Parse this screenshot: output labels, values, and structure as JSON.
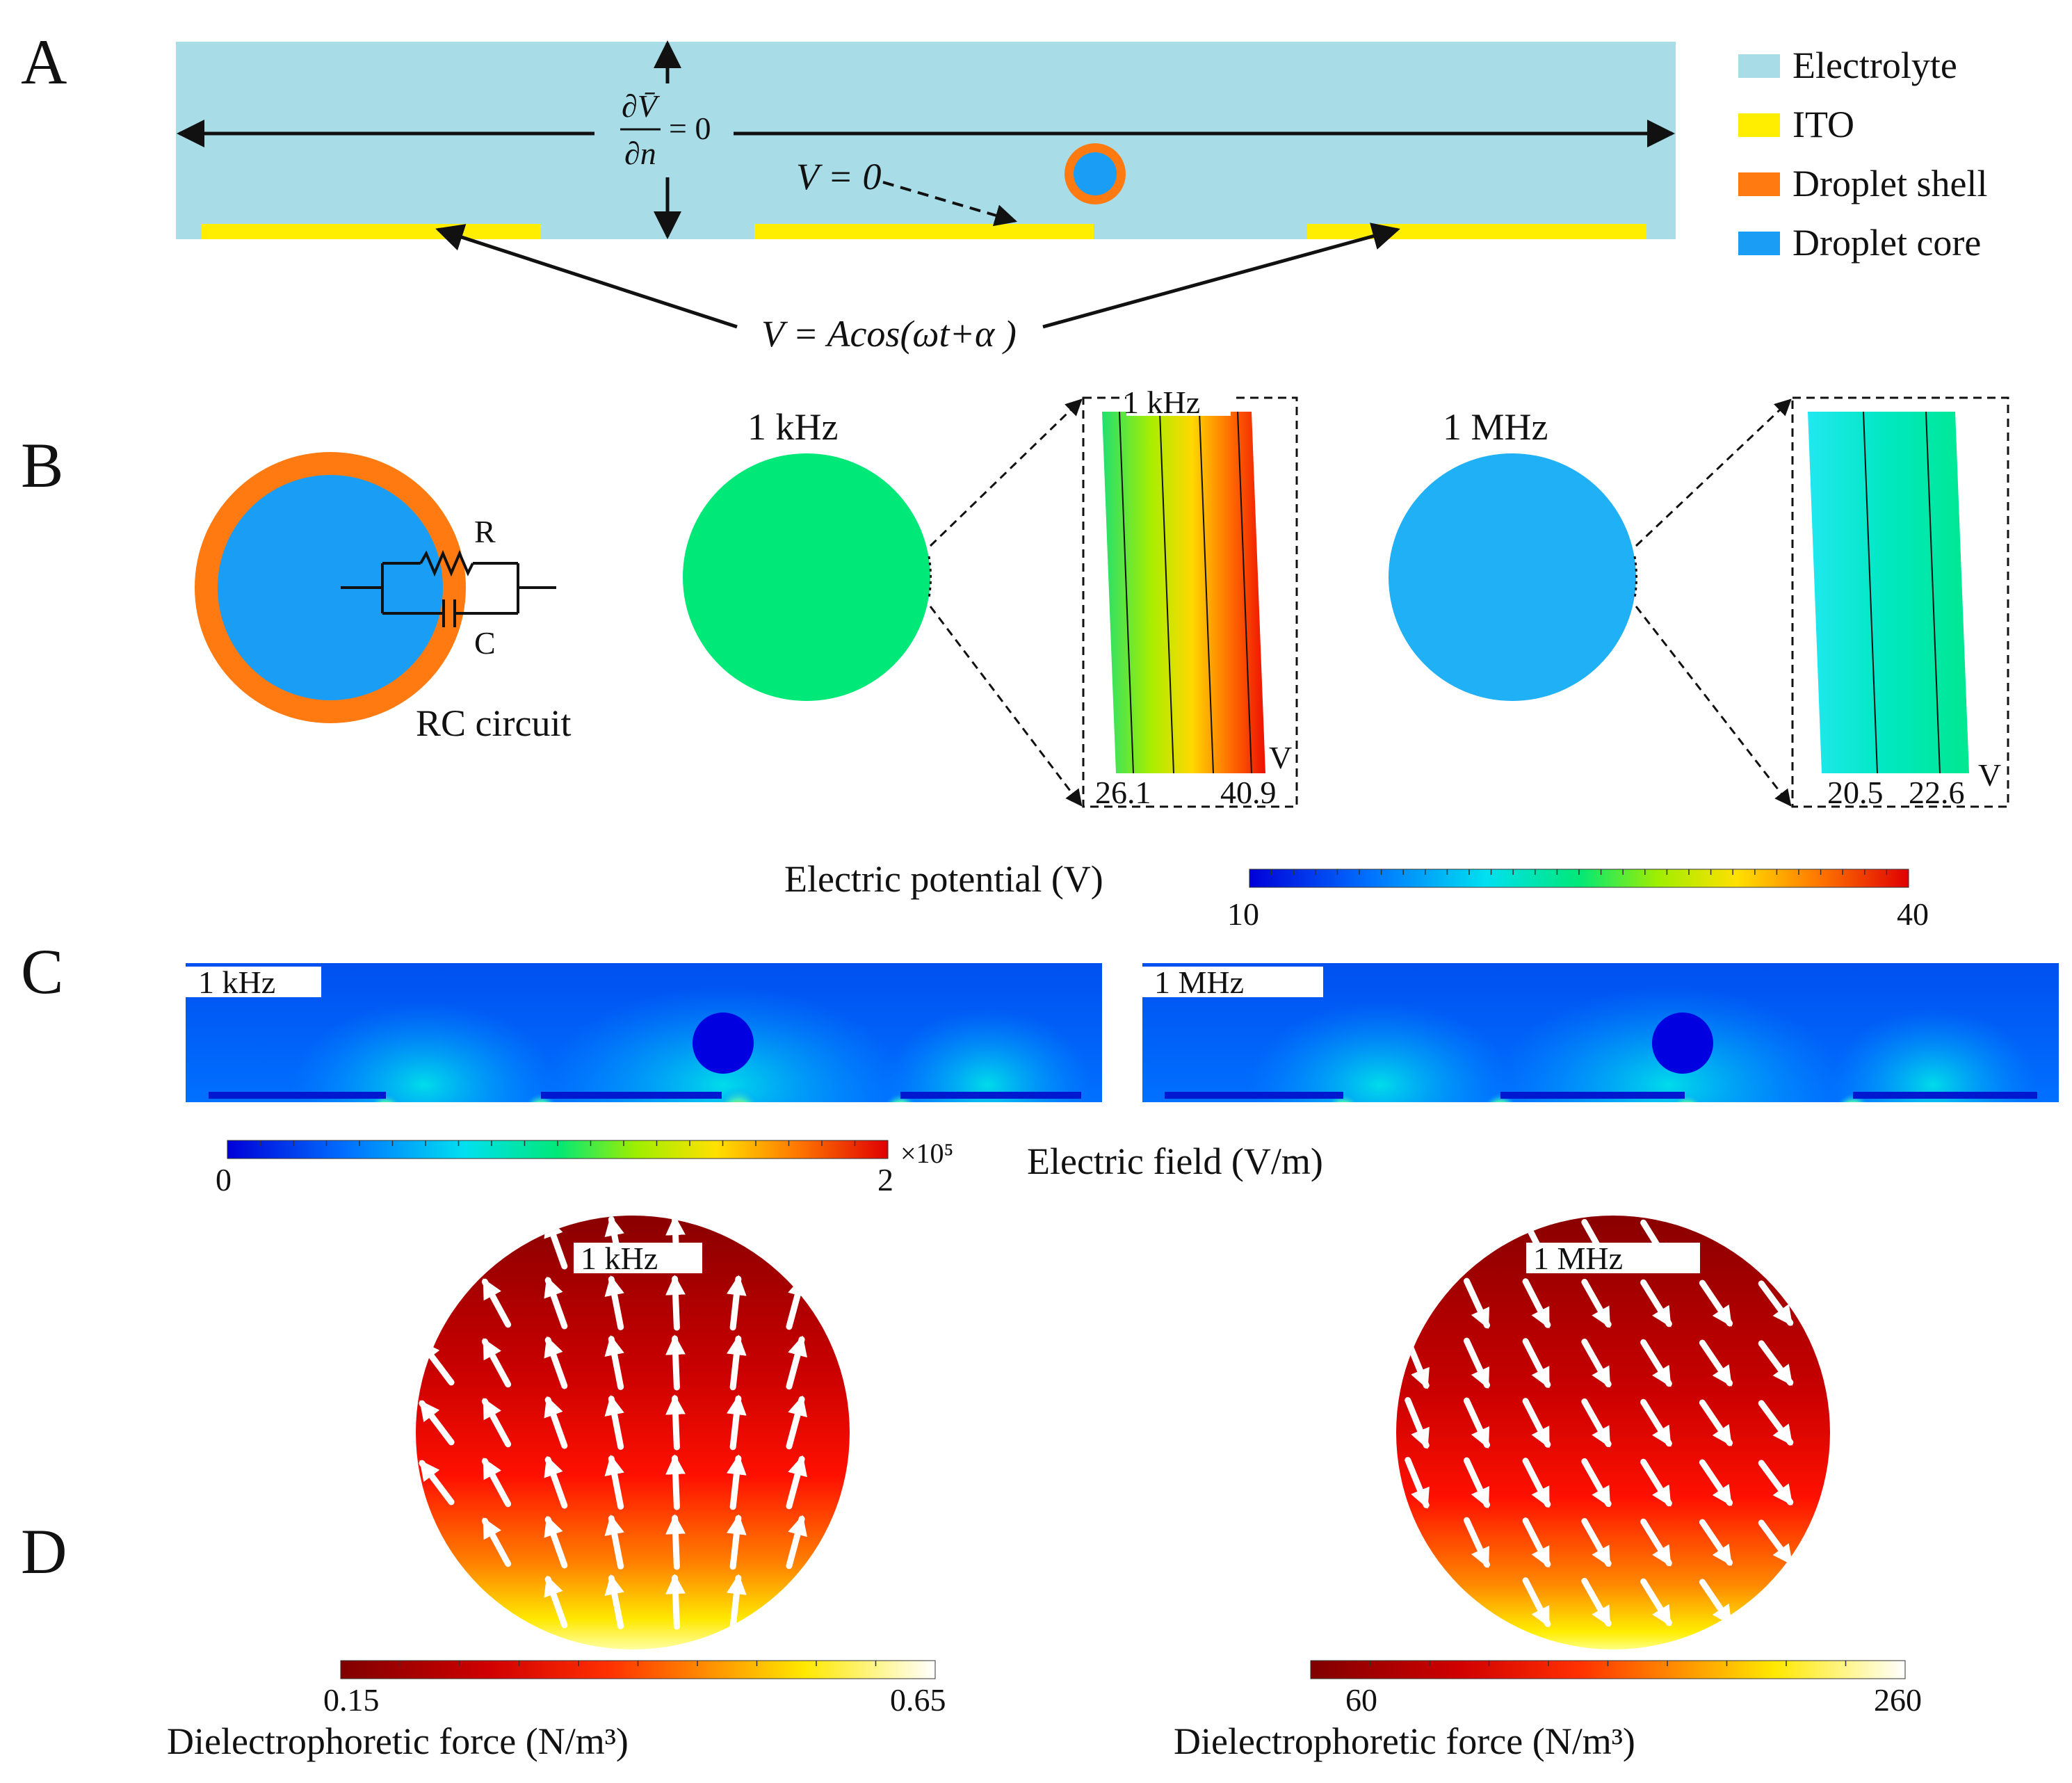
{
  "panels": {
    "a": "A",
    "b": "B",
    "c": "C",
    "d": "D"
  },
  "panel_a": {
    "legend": [
      {
        "label": "Electrolyte",
        "color": "#a8dde8"
      },
      {
        "label": "ITO",
        "color": "#ffee00"
      },
      {
        "label": "Droplet shell",
        "color": "#ff7a10"
      },
      {
        "label": "Droplet core",
        "color": "#1a9ef5"
      }
    ],
    "boundary_condition": "∂V̄/∂n = 0",
    "bc_num": "∂V̄",
    "bc_den": "∂n",
    "bc_rhs": "= 0",
    "ground_label": "V = 0",
    "drive_label": "V = Acos(ωt+α )"
  },
  "panel_b": {
    "rc_r": "R",
    "rc_c": "C",
    "rc_caption": "RC circuit",
    "freq_low": "1 kHz",
    "freq_high": "1 MHz",
    "inset_low_title": "1 kHz",
    "inset_low_min": "26.1",
    "inset_low_max": "40.9",
    "inset_high_min": "20.5",
    "inset_high_max": "22.6",
    "unit_v": "V",
    "colorbar_title": "Electric potential (V)",
    "colorbar_min": "10",
    "colorbar_max": "40"
  },
  "panel_c": {
    "label_low": "1 kHz",
    "label_high": "1 MHz",
    "colorbar_min": "0",
    "colorbar_max": "2",
    "colorbar_exp": "×10⁵",
    "colorbar_title": "Electric field (V/m)"
  },
  "panel_d": {
    "label_low": "1 kHz",
    "label_high": "1 MHz",
    "cb_low_min": "0.15",
    "cb_low_max": "0.65",
    "cb_high_min": "60",
    "cb_high_max": "260",
    "colorbar_title": "Dielectrophoretic force (N/m³)"
  },
  "colors": {
    "jet": [
      "#0000d8",
      "#0080ff",
      "#00e0f0",
      "#00e878",
      "#90ee00",
      "#ffe000",
      "#ff8000",
      "#ff2000",
      "#e00000"
    ],
    "heat": [
      "#800000",
      "#c80000",
      "#ff2000",
      "#ff8000",
      "#ffe000",
      "#ffff60",
      "#ffffff"
    ]
  }
}
